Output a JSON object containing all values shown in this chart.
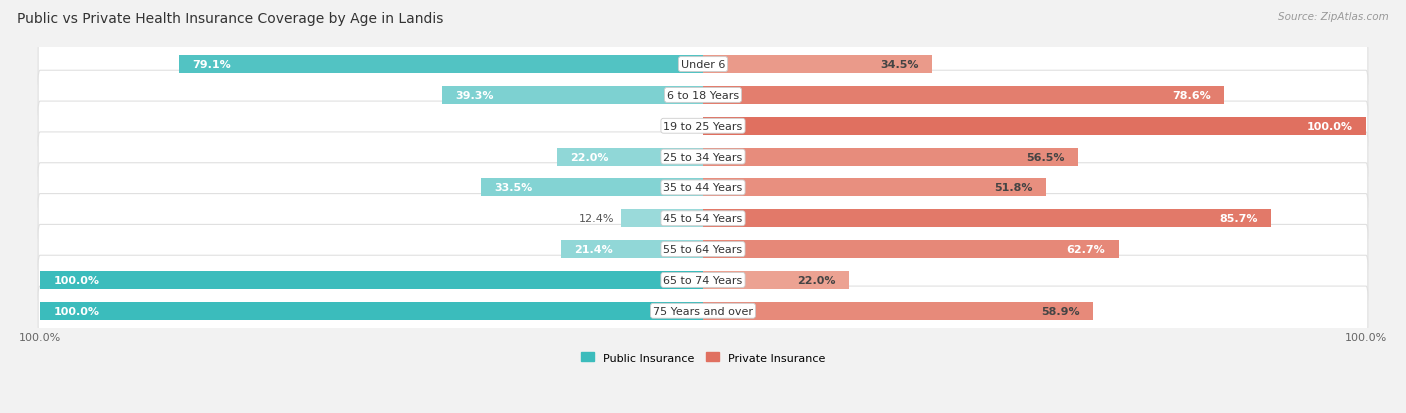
{
  "title": "Public vs Private Health Insurance Coverage by Age in Landis",
  "source": "Source: ZipAtlas.com",
  "categories": [
    "Under 6",
    "6 to 18 Years",
    "19 to 25 Years",
    "25 to 34 Years",
    "35 to 44 Years",
    "45 to 54 Years",
    "55 to 64 Years",
    "65 to 74 Years",
    "75 Years and over"
  ],
  "public_values": [
    79.1,
    39.3,
    0.0,
    22.0,
    33.5,
    12.4,
    21.4,
    100.0,
    100.0
  ],
  "private_values": [
    34.5,
    78.6,
    100.0,
    56.5,
    51.8,
    85.7,
    62.7,
    22.0,
    58.9
  ],
  "public_high_color": "#3bbcbc",
  "public_low_color": "#a8dede",
  "private_high_color": "#e07060",
  "private_low_color": "#f0b0a0",
  "bg_color": "#f2f2f2",
  "row_bg": "#ffffff",
  "row_border": "#e0e0e0",
  "title_fontsize": 10,
  "label_fontsize": 8,
  "value_fontsize": 8,
  "source_fontsize": 7.5,
  "max_value": 100.0,
  "legend_labels": [
    "Public Insurance",
    "Private Insurance"
  ],
  "x_tick_left": "100.0%",
  "x_tick_right": "100.0%"
}
